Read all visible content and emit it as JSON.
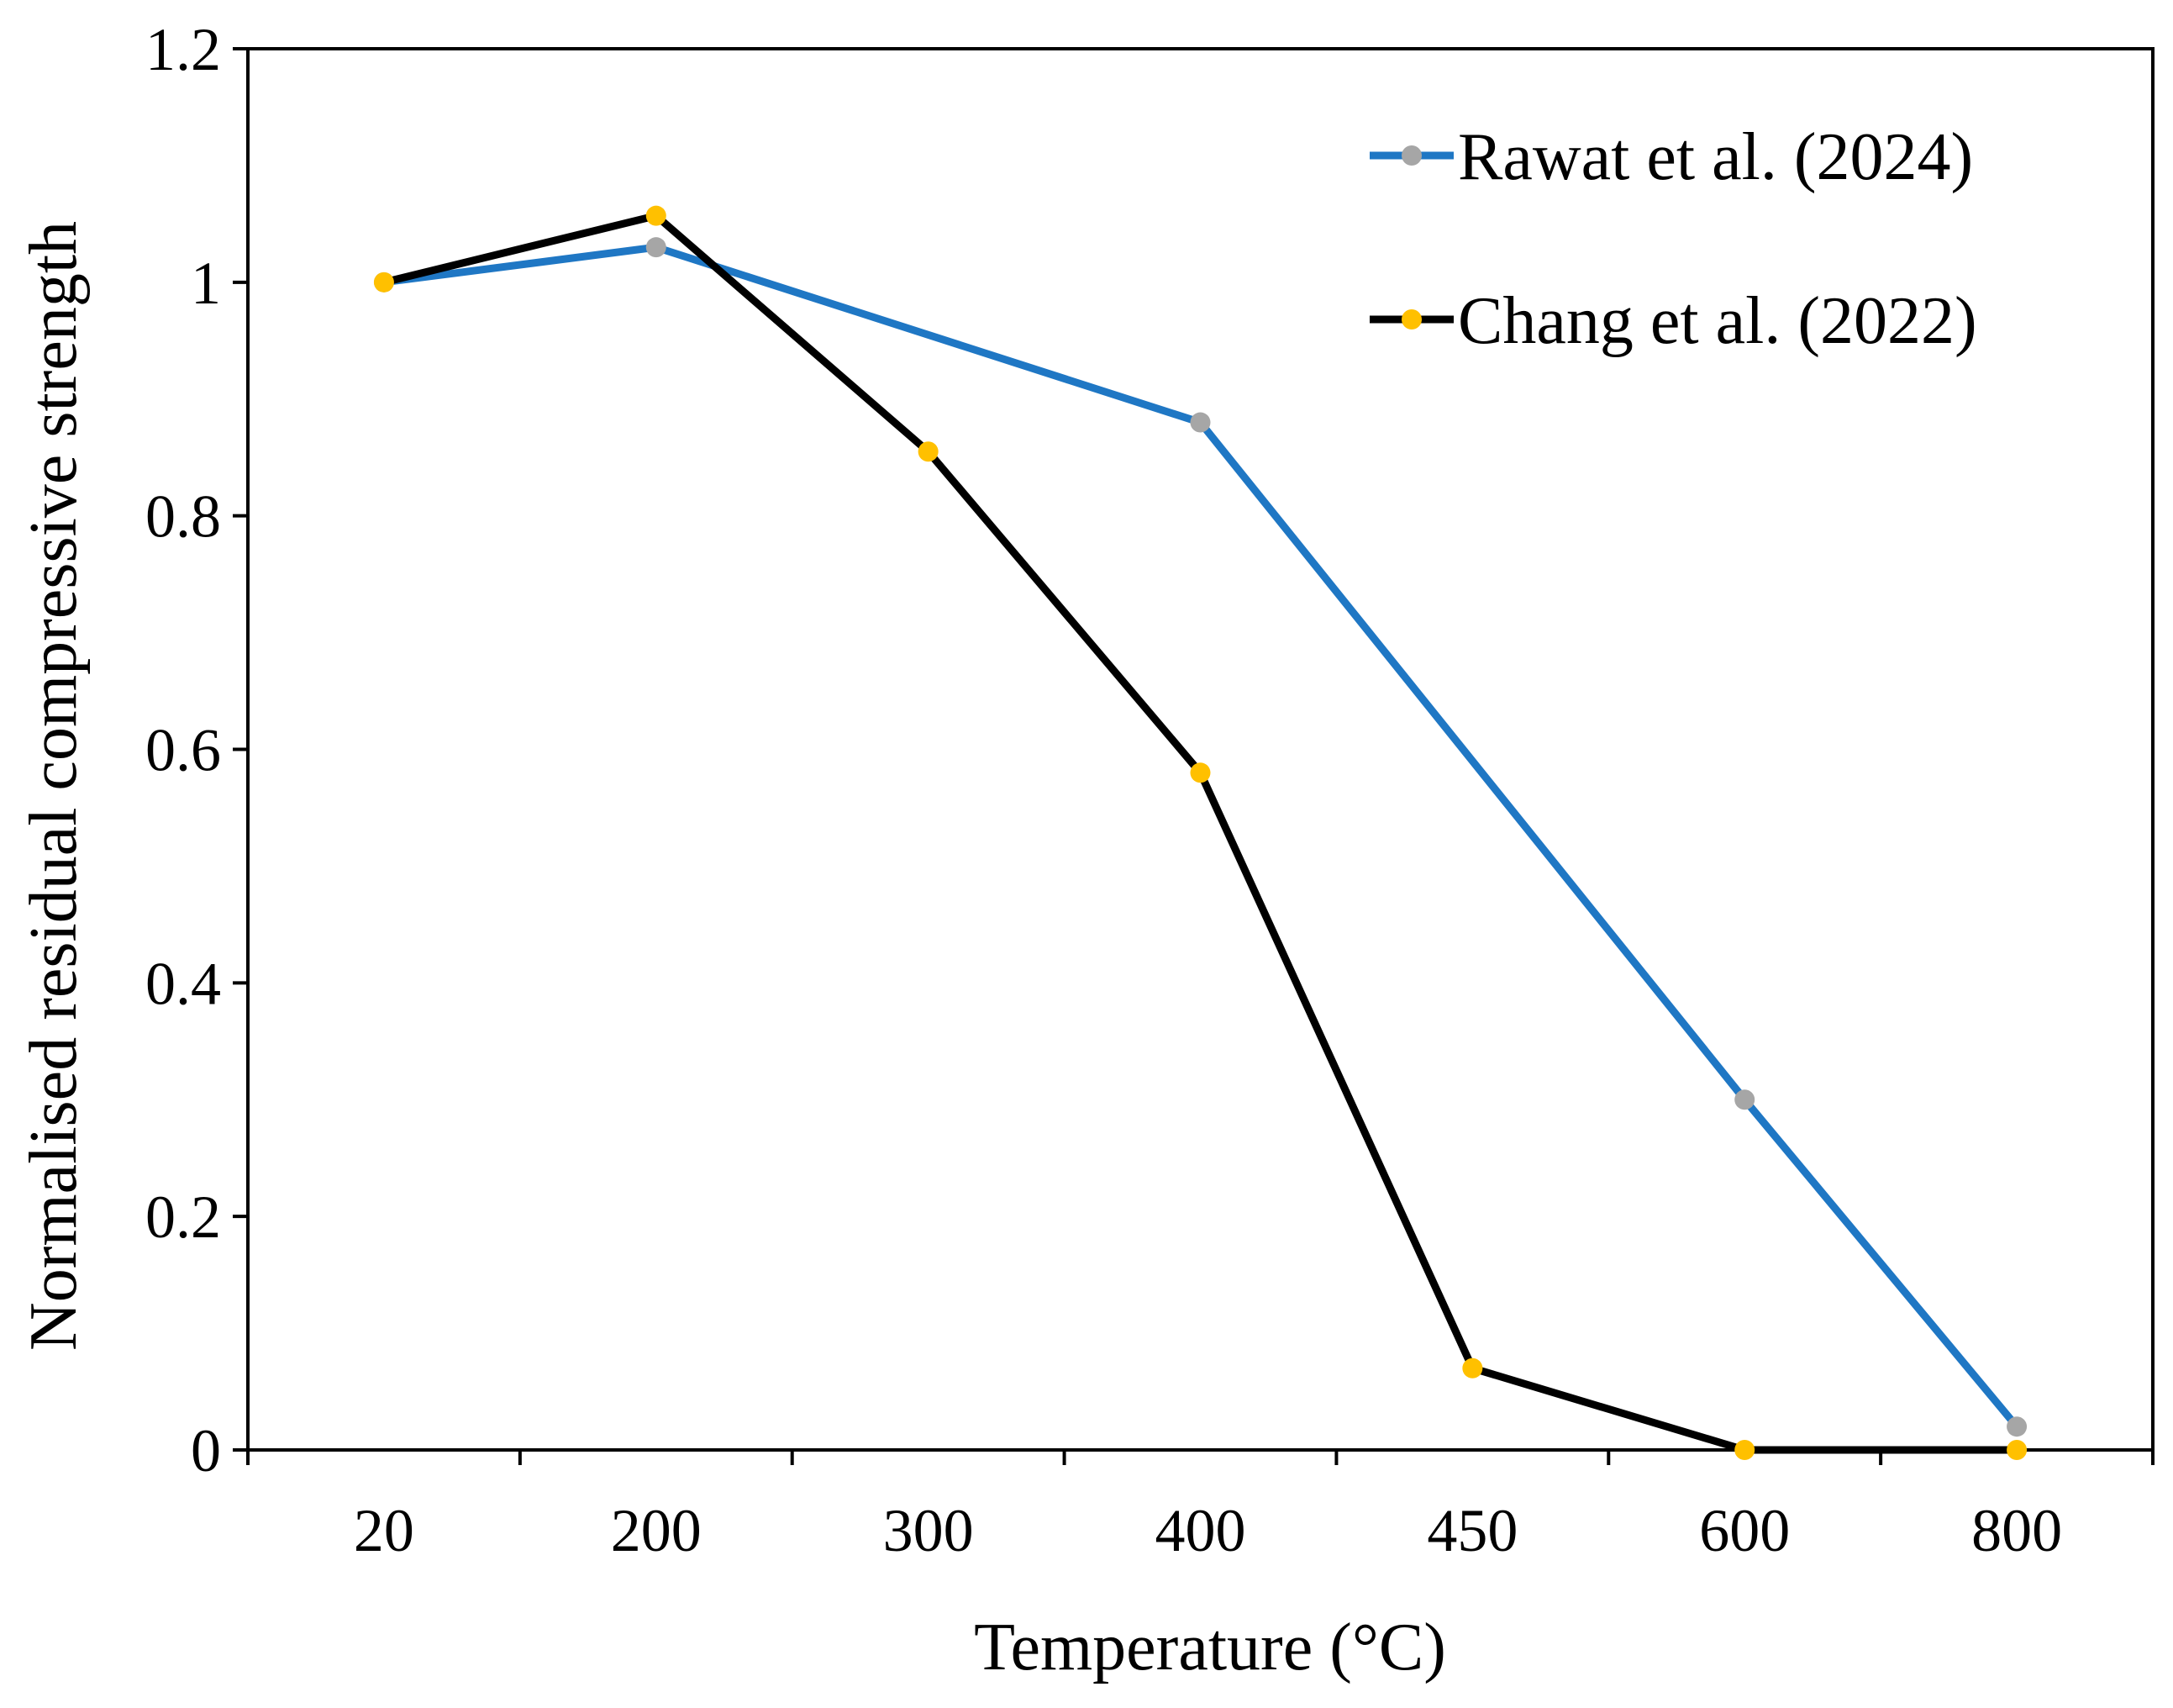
{
  "chart_data": {
    "type": "line",
    "title": "",
    "xlabel": "Temperature (°C)",
    "ylabel": "Normalised residual compressive strength",
    "categories": [
      "20",
      "200",
      "300",
      "400",
      "450",
      "600",
      "800"
    ],
    "ylim": [
      0,
      1.2
    ],
    "yticks": [
      0,
      0.2,
      0.4,
      0.6,
      0.8,
      1,
      1.2
    ],
    "ytick_labels": [
      "0",
      "0.2",
      "0.4",
      "0.6",
      "0.8",
      "1",
      "1.2"
    ],
    "grid": false,
    "legend_position": "top-right",
    "series": [
      {
        "name": "Rawat et al. (2024)",
        "line_color": "#1f77c4",
        "marker_color": "#a6a6a6",
        "points": [
          {
            "category": "20",
            "value": 1.0
          },
          {
            "category": "200",
            "value": 1.03
          },
          {
            "category": "400",
            "value": 0.88
          },
          {
            "category": "600",
            "value": 0.3
          },
          {
            "category": "800",
            "value": 0.02
          }
        ]
      },
      {
        "name": "Chang et al. (2022)",
        "line_color": "#000000",
        "marker_color": "#ffc000",
        "points": [
          {
            "category": "20",
            "value": 1.0
          },
          {
            "category": "200",
            "value": 1.057
          },
          {
            "category": "300",
            "value": 0.855
          },
          {
            "category": "400",
            "value": 0.58
          },
          {
            "category": "450",
            "value": 0.07
          },
          {
            "category": "600",
            "value": 0.0
          },
          {
            "category": "800",
            "value": 0.0
          }
        ]
      }
    ]
  }
}
